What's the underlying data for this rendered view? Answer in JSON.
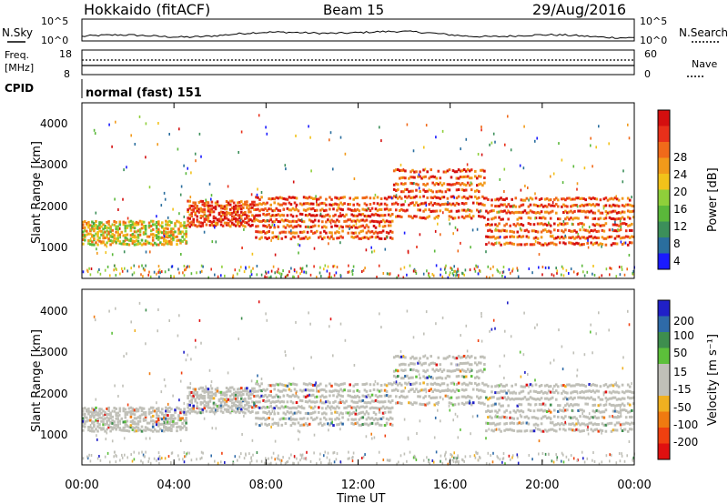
{
  "header": {
    "title": "Hokkaido (fitACF)",
    "beam": "Beam 15",
    "date": "29/Aug/2016"
  },
  "panel_labels": {
    "nsky": "N.Sky",
    "nsearch": "N.Search",
    "freq_line1": "Freq.",
    "freq_line2": "[MHz]",
    "nave": "Nave",
    "cpid": "CPID",
    "cpid_value": "normal (fast) 151"
  },
  "colors": {
    "power_scale": [
      "#1a1aff",
      "#2a6e9e",
      "#3c8f5a",
      "#5ab83a",
      "#8fcf3a",
      "#f2c21a",
      "#f29a1a",
      "#f06a1a",
      "#e8301a",
      "#d40f0f"
    ],
    "velocity_scale": [
      "#2020c8",
      "#2e6aa8",
      "#3e8e4e",
      "#5cc03a",
      "#c0c0b8",
      "#c0c0b8",
      "#f0b020",
      "#f07a10",
      "#f04010",
      "#e01010"
    ]
  },
  "chart_data": [
    {
      "type": "line",
      "name": "noise",
      "x": [
        "00:00",
        "04:00",
        "08:00",
        "12:00",
        "16:00",
        "20:00",
        "00:00"
      ],
      "left_ticks": [
        "10^5",
        "10^0"
      ],
      "right_ticks": [
        "10^5",
        "10^0"
      ]
    },
    {
      "type": "line",
      "name": "frequency",
      "left_ticks": [
        "18",
        "8"
      ],
      "right_ticks": [
        "60",
        "0"
      ]
    },
    {
      "type": "heatmap",
      "name": "power",
      "x": [
        "00:00",
        "04:00",
        "08:00",
        "12:00",
        "16:00",
        "20:00",
        "00:00"
      ],
      "ylabel": "Slant Range [km]",
      "yticks": [
        "4000",
        "3000",
        "2000",
        "1000"
      ],
      "ylim": [
        200,
        4500
      ],
      "colorbar_label": "Power [dB]",
      "colorbar_ticks": [
        "28",
        "24",
        "20",
        "16",
        "12",
        "8",
        "4"
      ],
      "bands": [
        {
          "from": 0,
          "to": 4.5,
          "low": 1050,
          "high": 1650,
          "level": "mixed"
        },
        {
          "from": 4.5,
          "to": 7.5,
          "low": 1500,
          "high": 2150,
          "level": "strong"
        },
        {
          "from": 7.5,
          "to": 13.5,
          "low": 1200,
          "high": 2300,
          "level": "strong"
        },
        {
          "from": 13.5,
          "to": 17.5,
          "low": 1700,
          "high": 3000,
          "level": "strong"
        },
        {
          "from": 17.5,
          "to": 24,
          "low": 1050,
          "high": 2300,
          "level": "strong"
        }
      ]
    },
    {
      "type": "heatmap",
      "name": "velocity",
      "x": [
        "00:00",
        "04:00",
        "08:00",
        "12:00",
        "16:00",
        "20:00",
        "00:00"
      ],
      "xlabel": "Time UT",
      "ylabel": "Slant Range [km]",
      "yticks": [
        "4000",
        "3000",
        "2000",
        "1000"
      ],
      "ylim": [
        200,
        4500
      ],
      "colorbar_label": "Velocity [m s⁻¹]",
      "colorbar_ticks": [
        "200",
        "100",
        "50",
        "15",
        "-15",
        "-50",
        "-100",
        "-200"
      ]
    }
  ]
}
